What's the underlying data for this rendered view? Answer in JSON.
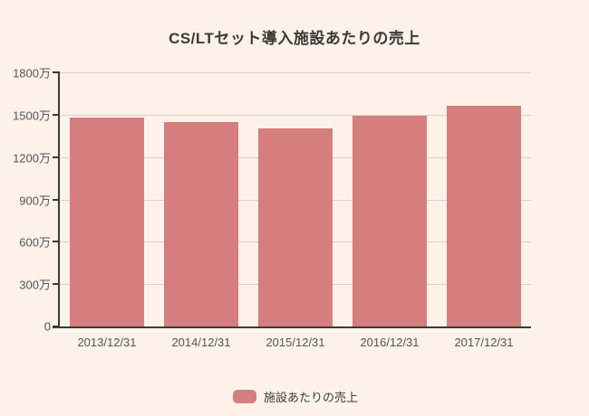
{
  "title": "CS/LTセット導入施設あたりの売上",
  "legend": {
    "label": "施設あたりの売上"
  },
  "colors": {
    "background": "#fdf2e9",
    "bar": "#d67d7d",
    "axis": "#3a3a3a",
    "gridline": "#d8d2c9",
    "tick_label": "#555555",
    "title_text": "#3a3a3a",
    "legend_text": "#3c3c3c"
  },
  "chart_data": {
    "type": "bar",
    "title": "CS/LTセット導入施設あたりの売上",
    "categories": [
      "2013/12/31",
      "2014/12/31",
      "2015/12/31",
      "2016/12/31",
      "2017/12/31"
    ],
    "series": [
      {
        "name": "施設あたりの売上",
        "values": [
          14800000,
          14500000,
          14050000,
          14900000,
          15650000
        ]
      }
    ],
    "y_axis": {
      "max": 18000000,
      "ticks": [
        {
          "value": 0,
          "label": "0"
        },
        {
          "value": 3000000,
          "label": "300万"
        },
        {
          "value": 6000000,
          "label": "600万"
        },
        {
          "value": 9000000,
          "label": "900万"
        },
        {
          "value": 12000000,
          "label": "1200万"
        },
        {
          "value": 15000000,
          "label": "1500万"
        },
        {
          "value": 18000000,
          "label": "1800万"
        }
      ]
    },
    "grid": true,
    "legend_position": "bottom"
  }
}
